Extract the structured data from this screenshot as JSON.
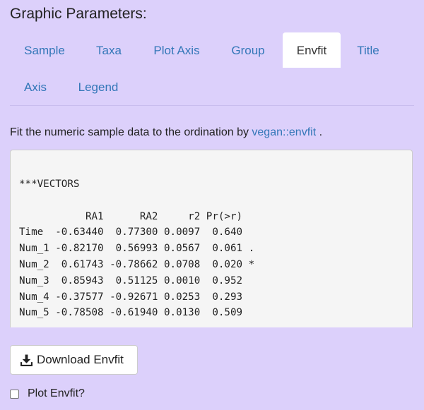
{
  "panel": {
    "title": "Graphic Parameters:"
  },
  "tabs": [
    {
      "label": "Sample",
      "active": false
    },
    {
      "label": "Taxa",
      "active": false
    },
    {
      "label": "Plot Axis",
      "active": false
    },
    {
      "label": "Group",
      "active": false
    },
    {
      "label": "Envfit",
      "active": true
    },
    {
      "label": "Title",
      "active": false
    },
    {
      "label": "Axis",
      "active": false
    },
    {
      "label": "Legend",
      "active": false
    }
  ],
  "description": {
    "prefix": "Fit the numeric sample data to the ordination by ",
    "link_text": "vegan::envfit",
    "suffix": " ."
  },
  "output": {
    "text": "***VECTORS\n\n           RA1      RA2     r2 Pr(>r)  \nTime  -0.63440  0.77300 0.0097  0.640  \nNum_1 -0.82170  0.56993 0.0567  0.061 .\nNum_2  0.61743 -0.78662 0.0708  0.020 *\nNum_3  0.85943  0.51125 0.0010  0.952  \nNum_4 -0.37577 -0.92671 0.0253  0.293  \nNum_5 -0.78508 -0.61940 0.0130  0.509  \n---"
  },
  "download_button": {
    "label": "Download Envfit",
    "icon": "download-icon"
  },
  "plot_checkbox": {
    "label": "Plot Envfit?",
    "checked": false
  },
  "colors": {
    "background": "#dcd0fb",
    "link": "#3377b8",
    "active_tab": "#ffffff",
    "output_bg": "#f5f5f5"
  }
}
